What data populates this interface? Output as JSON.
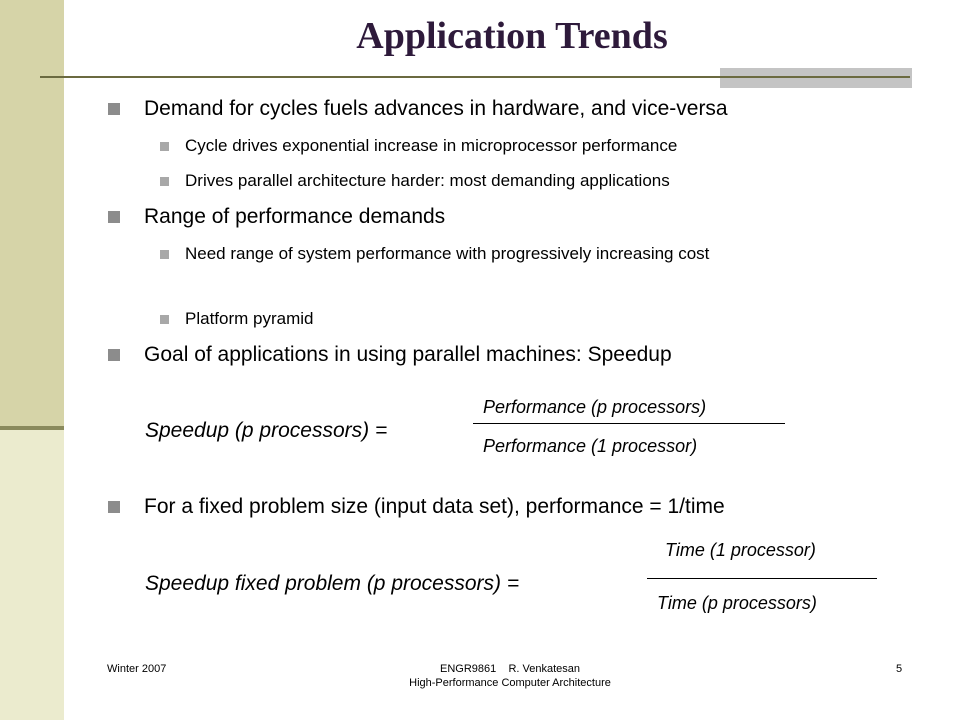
{
  "title": "Application Trends",
  "bullets": {
    "b1": "Demand for cycles fuels advances in hardware, and vice-versa",
    "b1_sub1": "Cycle drives exponential increase in microprocessor performance",
    "b1_sub2": "Drives parallel architecture harder: most demanding applications",
    "b2": "Range of performance demands",
    "b2_sub1": "Need range of system performance with progressively increasing cost",
    "b2_sub2": "Platform pyramid",
    "b3": "Goal of applications in using parallel machines: Speedup",
    "b4": "For a fixed problem size (input data set), performance = 1/time"
  },
  "formula1": {
    "lhs": "Speedup (p processors) =",
    "numerator": "Performance (p processors)",
    "denominator": "Performance (1 processor)"
  },
  "formula2": {
    "lhs": "Speedup fixed problem (p processors) =",
    "numerator": "Time (1 processor)",
    "denominator": "Time (p processors)"
  },
  "footer": {
    "left": "Winter 2007",
    "center_line1": "ENGR9861    R. Venkatesan",
    "center_line2": "High-Performance Computer Architecture",
    "page_number": "5"
  }
}
